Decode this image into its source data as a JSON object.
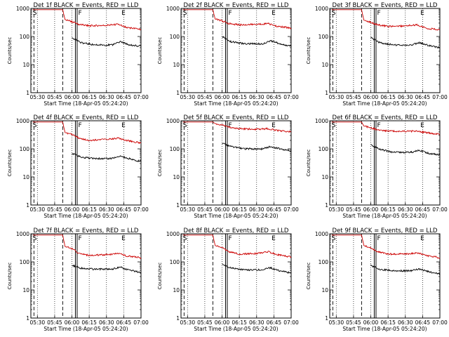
{
  "chart_data": [
    {
      "type": "line",
      "title": "Det 1f BLACK = Events, RED = LLD",
      "xlabel": "Start Time (18-Apr-05 05:24:20)",
      "ylabel": "Counts/sec",
      "x_ticks": [
        "05:30",
        "05:45",
        "06:00",
        "06:15",
        "06:30",
        "06:45",
        "07:00"
      ],
      "y_ticks": [
        "1",
        "10",
        "100",
        "1000"
      ],
      "yscale": "log",
      "ylim": [
        1,
        1000
      ],
      "xlim": [
        "05:24:20",
        "07:00"
      ],
      "grid": false,
      "markers": {
        "S": "05:26",
        "F": "06:03",
        "E": "06:43"
      },
      "series": [
        {
          "name": "RED = LLD",
          "color": "#cc0000",
          "points": [
            [
              "05:26",
              900
            ],
            [
              "05:52",
              900
            ],
            [
              "05:54",
              400
            ],
            [
              "06:00",
              340
            ],
            [
              "06:06",
              270
            ],
            [
              "06:15",
              240
            ],
            [
              "06:30",
              250
            ],
            [
              "06:40",
              270
            ],
            [
              "06:48",
              210
            ],
            [
              "07:00",
              180
            ]
          ]
        },
        {
          "name": "BLACK = Events",
          "color": "#000000",
          "points": [
            [
              "06:00",
              90
            ],
            [
              "06:08",
              60
            ],
            [
              "06:20",
              50
            ],
            [
              "06:35",
              50
            ],
            [
              "06:42",
              65
            ],
            [
              "06:50",
              50
            ],
            [
              "07:00",
              45
            ]
          ]
        }
      ]
    },
    {
      "type": "line",
      "title": "Det 2f BLACK = Events, RED = LLD",
      "xlabel": "Start Time (18-Apr-05 05:24:20)",
      "ylabel": "Counts/sec",
      "x_ticks": [
        "05:30",
        "05:45",
        "06:00",
        "06:15",
        "06:30",
        "06:45",
        "07:00"
      ],
      "y_ticks": [
        "1",
        "10",
        "100",
        "1000"
      ],
      "yscale": "log",
      "ylim": [
        1,
        1000
      ],
      "xlim": [
        "05:24:20",
        "07:00"
      ],
      "grid": false,
      "markers": {
        "S": "05:26",
        "F": "06:03",
        "E": "06:43"
      },
      "series": [
        {
          "name": "RED = LLD",
          "color": "#cc0000",
          "points": [
            [
              "05:26",
              900
            ],
            [
              "05:52",
              900
            ],
            [
              "05:54",
              420
            ],
            [
              "06:00",
              360
            ],
            [
              "06:06",
              290
            ],
            [
              "06:15",
              260
            ],
            [
              "06:30",
              270
            ],
            [
              "06:40",
              290
            ],
            [
              "06:48",
              230
            ],
            [
              "07:00",
              200
            ]
          ]
        },
        {
          "name": "BLACK = Events",
          "color": "#000000",
          "points": [
            [
              "06:00",
              100
            ],
            [
              "06:08",
              65
            ],
            [
              "06:20",
              55
            ],
            [
              "06:35",
              55
            ],
            [
              "06:42",
              70
            ],
            [
              "06:50",
              55
            ],
            [
              "07:00",
              45
            ]
          ]
        }
      ]
    },
    {
      "type": "line",
      "title": "Det 3f BLACK = Events, RED = LLD",
      "xlabel": "Start Time (18-Apr-05 05:24:20)",
      "ylabel": "Counts/sec",
      "x_ticks": [
        "05:30",
        "05:45",
        "06:00",
        "06:15",
        "06:30",
        "06:45",
        "07:00"
      ],
      "y_ticks": [
        "1",
        "10",
        "100",
        "1000"
      ],
      "yscale": "log",
      "ylim": [
        1,
        1000
      ],
      "xlim": [
        "05:24:20",
        "07:00"
      ],
      "grid": false,
      "markers": {
        "S": "05:26",
        "F": "06:03",
        "E": "06:43"
      },
      "series": [
        {
          "name": "RED = LLD",
          "color": "#cc0000",
          "points": [
            [
              "05:26",
              900
            ],
            [
              "05:52",
              900
            ],
            [
              "05:54",
              380
            ],
            [
              "06:00",
              320
            ],
            [
              "06:06",
              260
            ],
            [
              "06:15",
              230
            ],
            [
              "06:30",
              240
            ],
            [
              "06:40",
              260
            ],
            [
              "06:48",
              200
            ],
            [
              "07:00",
              170
            ]
          ]
        },
        {
          "name": "BLACK = Events",
          "color": "#000000",
          "points": [
            [
              "06:00",
              90
            ],
            [
              "06:08",
              60
            ],
            [
              "06:20",
              50
            ],
            [
              "06:35",
              50
            ],
            [
              "06:42",
              60
            ],
            [
              "06:50",
              48
            ],
            [
              "07:00",
              40
            ]
          ]
        }
      ]
    },
    {
      "type": "line",
      "title": "Det 4f BLACK = Events, RED = LLD",
      "xlabel": "Start Time (18-Apr-05 05:24:20)",
      "ylabel": "Counts/sec",
      "x_ticks": [
        "05:30",
        "05:45",
        "06:00",
        "06:15",
        "06:30",
        "06:45",
        "07:00"
      ],
      "y_ticks": [
        "1",
        "10",
        "100",
        "1000"
      ],
      "yscale": "log",
      "ylim": [
        1,
        1000
      ],
      "xlim": [
        "05:24:20",
        "07:00"
      ],
      "grid": false,
      "markers": {
        "S": "05:26",
        "F": "06:03",
        "E": "06:43"
      },
      "series": [
        {
          "name": "RED = LLD",
          "color": "#cc0000",
          "points": [
            [
              "05:26",
              900
            ],
            [
              "05:52",
              900
            ],
            [
              "05:54",
              380
            ],
            [
              "06:00",
              330
            ],
            [
              "06:06",
              240
            ],
            [
              "06:15",
              200
            ],
            [
              "06:30",
              220
            ],
            [
              "06:40",
              240
            ],
            [
              "06:48",
              200
            ],
            [
              "07:00",
              160
            ]
          ]
        },
        {
          "name": "BLACK = Events",
          "color": "#000000",
          "points": [
            [
              "06:00",
              70
            ],
            [
              "06:08",
              50
            ],
            [
              "06:20",
              45
            ],
            [
              "06:35",
              45
            ],
            [
              "06:42",
              55
            ],
            [
              "06:50",
              45
            ],
            [
              "07:00",
              35
            ]
          ]
        }
      ]
    },
    {
      "type": "line",
      "title": "Det 5f BLACK = Events, RED = LLD",
      "xlabel": "Start Time (18-Apr-05 05:24:20)",
      "ylabel": "Counts/sec",
      "x_ticks": [
        "05:30",
        "05:45",
        "06:00",
        "06:15",
        "06:30",
        "06:45",
        "07:00"
      ],
      "y_ticks": [
        "1",
        "10",
        "100",
        "1000"
      ],
      "yscale": "log",
      "ylim": [
        1,
        1000
      ],
      "xlim": [
        "05:24:20",
        "07:00"
      ],
      "grid": false,
      "markers": {
        "S": "05:26",
        "F": "06:03",
        "E": "06:43"
      },
      "series": [
        {
          "name": "RED = LLD",
          "color": "#cc0000",
          "points": [
            [
              "05:26",
              900
            ],
            [
              "05:52",
              900
            ],
            [
              "05:54",
              800
            ],
            [
              "06:00",
              700
            ],
            [
              "06:06",
              600
            ],
            [
              "06:15",
              520
            ],
            [
              "06:30",
              500
            ],
            [
              "06:40",
              520
            ],
            [
              "06:48",
              450
            ],
            [
              "07:00",
              400
            ]
          ]
        },
        {
          "name": "BLACK = Events",
          "color": "#000000",
          "points": [
            [
              "06:00",
              160
            ],
            [
              "06:08",
              120
            ],
            [
              "06:20",
              100
            ],
            [
              "06:35",
              100
            ],
            [
              "06:42",
              120
            ],
            [
              "06:50",
              100
            ],
            [
              "07:00",
              85
            ]
          ]
        }
      ]
    },
    {
      "type": "line",
      "title": "Det 6f BLACK = Events, RED = LLD",
      "xlabel": "Start Time (18-Apr-05 05:24:20)",
      "ylabel": "Counts/sec",
      "x_ticks": [
        "05:30",
        "05:45",
        "06:00",
        "06:15",
        "06:30",
        "06:45",
        "07:00"
      ],
      "y_ticks": [
        "1",
        "10",
        "100",
        "1000"
      ],
      "yscale": "log",
      "ylim": [
        1,
        1000
      ],
      "xlim": [
        "05:24:20",
        "07:00"
      ],
      "grid": false,
      "markers": {
        "S": "05:26",
        "F": "06:03",
        "E": "06:43"
      },
      "series": [
        {
          "name": "RED = LLD",
          "color": "#cc0000",
          "points": [
            [
              "05:26",
              900
            ],
            [
              "05:52",
              900
            ],
            [
              "05:54",
              650
            ],
            [
              "06:00",
              560
            ],
            [
              "06:06",
              480
            ],
            [
              "06:15",
              430
            ],
            [
              "06:30",
              420
            ],
            [
              "06:40",
              430
            ],
            [
              "06:48",
              380
            ],
            [
              "07:00",
              330
            ]
          ]
        },
        {
          "name": "BLACK = Events",
          "color": "#000000",
          "points": [
            [
              "06:00",
              140
            ],
            [
              "06:08",
              95
            ],
            [
              "06:20",
              75
            ],
            [
              "06:35",
              75
            ],
            [
              "06:42",
              90
            ],
            [
              "06:50",
              70
            ],
            [
              "07:00",
              60
            ]
          ]
        }
      ]
    },
    {
      "type": "line",
      "title": "Det 7f BLACK = Events, RED = LLD",
      "xlabel": "Start Time (18-Apr-05 05:24:20)",
      "ylabel": "Counts/sec",
      "x_ticks": [
        "05:30",
        "05:45",
        "06:00",
        "06:15",
        "06:30",
        "06:45",
        "07:00"
      ],
      "y_ticks": [
        "1",
        "10",
        "100",
        "1000"
      ],
      "yscale": "log",
      "ylim": [
        1,
        1000
      ],
      "xlim": [
        "05:24:20",
        "07:00"
      ],
      "grid": false,
      "markers": {
        "S": "05:26",
        "F": "06:03",
        "E": "06:43"
      },
      "series": [
        {
          "name": "RED = LLD",
          "color": "#cc0000",
          "points": [
            [
              "05:26",
              900
            ],
            [
              "05:52",
              900
            ],
            [
              "05:54",
              350
            ],
            [
              "06:00",
              300
            ],
            [
              "06:06",
              200
            ],
            [
              "06:15",
              170
            ],
            [
              "06:30",
              180
            ],
            [
              "06:40",
              200
            ],
            [
              "06:48",
              160
            ],
            [
              "07:00",
              140
            ]
          ]
        },
        {
          "name": "BLACK = Events",
          "color": "#000000",
          "points": [
            [
              "06:00",
              75
            ],
            [
              "06:08",
              60
            ],
            [
              "06:20",
              55
            ],
            [
              "06:35",
              55
            ],
            [
              "06:42",
              65
            ],
            [
              "06:50",
              50
            ],
            [
              "07:00",
              42
            ]
          ]
        }
      ]
    },
    {
      "type": "line",
      "title": "Det 8f BLACK = Events, RED = LLD",
      "xlabel": "Start Time (18-Apr-05 05:24:20)",
      "ylabel": "Counts/sec",
      "x_ticks": [
        "05:30",
        "05:45",
        "06:00",
        "06:15",
        "06:30",
        "06:45",
        "07:00"
      ],
      "y_ticks": [
        "1",
        "10",
        "100",
        "1000"
      ],
      "yscale": "log",
      "ylim": [
        1,
        1000
      ],
      "xlim": [
        "05:24:20",
        "07:00"
      ],
      "grid": false,
      "markers": {
        "S": "05:26",
        "F": "06:03",
        "E": "06:43"
      },
      "series": [
        {
          "name": "RED = LLD",
          "color": "#cc0000",
          "points": [
            [
              "05:26",
              900
            ],
            [
              "05:52",
              900
            ],
            [
              "05:54",
              380
            ],
            [
              "06:00",
              320
            ],
            [
              "06:06",
              230
            ],
            [
              "06:15",
              190
            ],
            [
              "06:30",
              200
            ],
            [
              "06:40",
              230
            ],
            [
              "06:48",
              180
            ],
            [
              "07:00",
              150
            ]
          ]
        },
        {
          "name": "BLACK = Events",
          "color": "#000000",
          "points": [
            [
              "06:00",
              80
            ],
            [
              "06:08",
              60
            ],
            [
              "06:20",
              52
            ],
            [
              "06:35",
              52
            ],
            [
              "06:42",
              62
            ],
            [
              "06:50",
              48
            ],
            [
              "07:00",
              40
            ]
          ]
        }
      ]
    },
    {
      "type": "line",
      "title": "Det 9f BLACK = Events, RED = LLD",
      "xlabel": "Start Time (18-Apr-05 05:24:20)",
      "ylabel": "Counts/sec",
      "x_ticks": [
        "05:30",
        "05:45",
        "06:00",
        "06:15",
        "06:30",
        "06:45",
        "07:00"
      ],
      "y_ticks": [
        "1",
        "10",
        "100",
        "1000"
      ],
      "yscale": "log",
      "ylim": [
        1,
        1000
      ],
      "xlim": [
        "05:24:20",
        "07:00"
      ],
      "grid": false,
      "markers": {
        "S": "05:26",
        "F": "06:03",
        "E": "06:43"
      },
      "series": [
        {
          "name": "RED = LLD",
          "color": "#cc0000",
          "points": [
            [
              "05:26",
              900
            ],
            [
              "05:52",
              900
            ],
            [
              "05:54",
              380
            ],
            [
              "06:00",
              320
            ],
            [
              "06:06",
              230
            ],
            [
              "06:15",
              190
            ],
            [
              "06:30",
              190
            ],
            [
              "06:40",
              210
            ],
            [
              "06:48",
              170
            ],
            [
              "07:00",
              140
            ]
          ]
        },
        {
          "name": "BLACK = Events",
          "color": "#000000",
          "points": [
            [
              "06:00",
              75
            ],
            [
              "06:08",
              55
            ],
            [
              "06:20",
              48
            ],
            [
              "06:35",
              48
            ],
            [
              "06:42",
              55
            ],
            [
              "06:50",
              45
            ],
            [
              "07:00",
              38
            ]
          ]
        }
      ]
    }
  ]
}
